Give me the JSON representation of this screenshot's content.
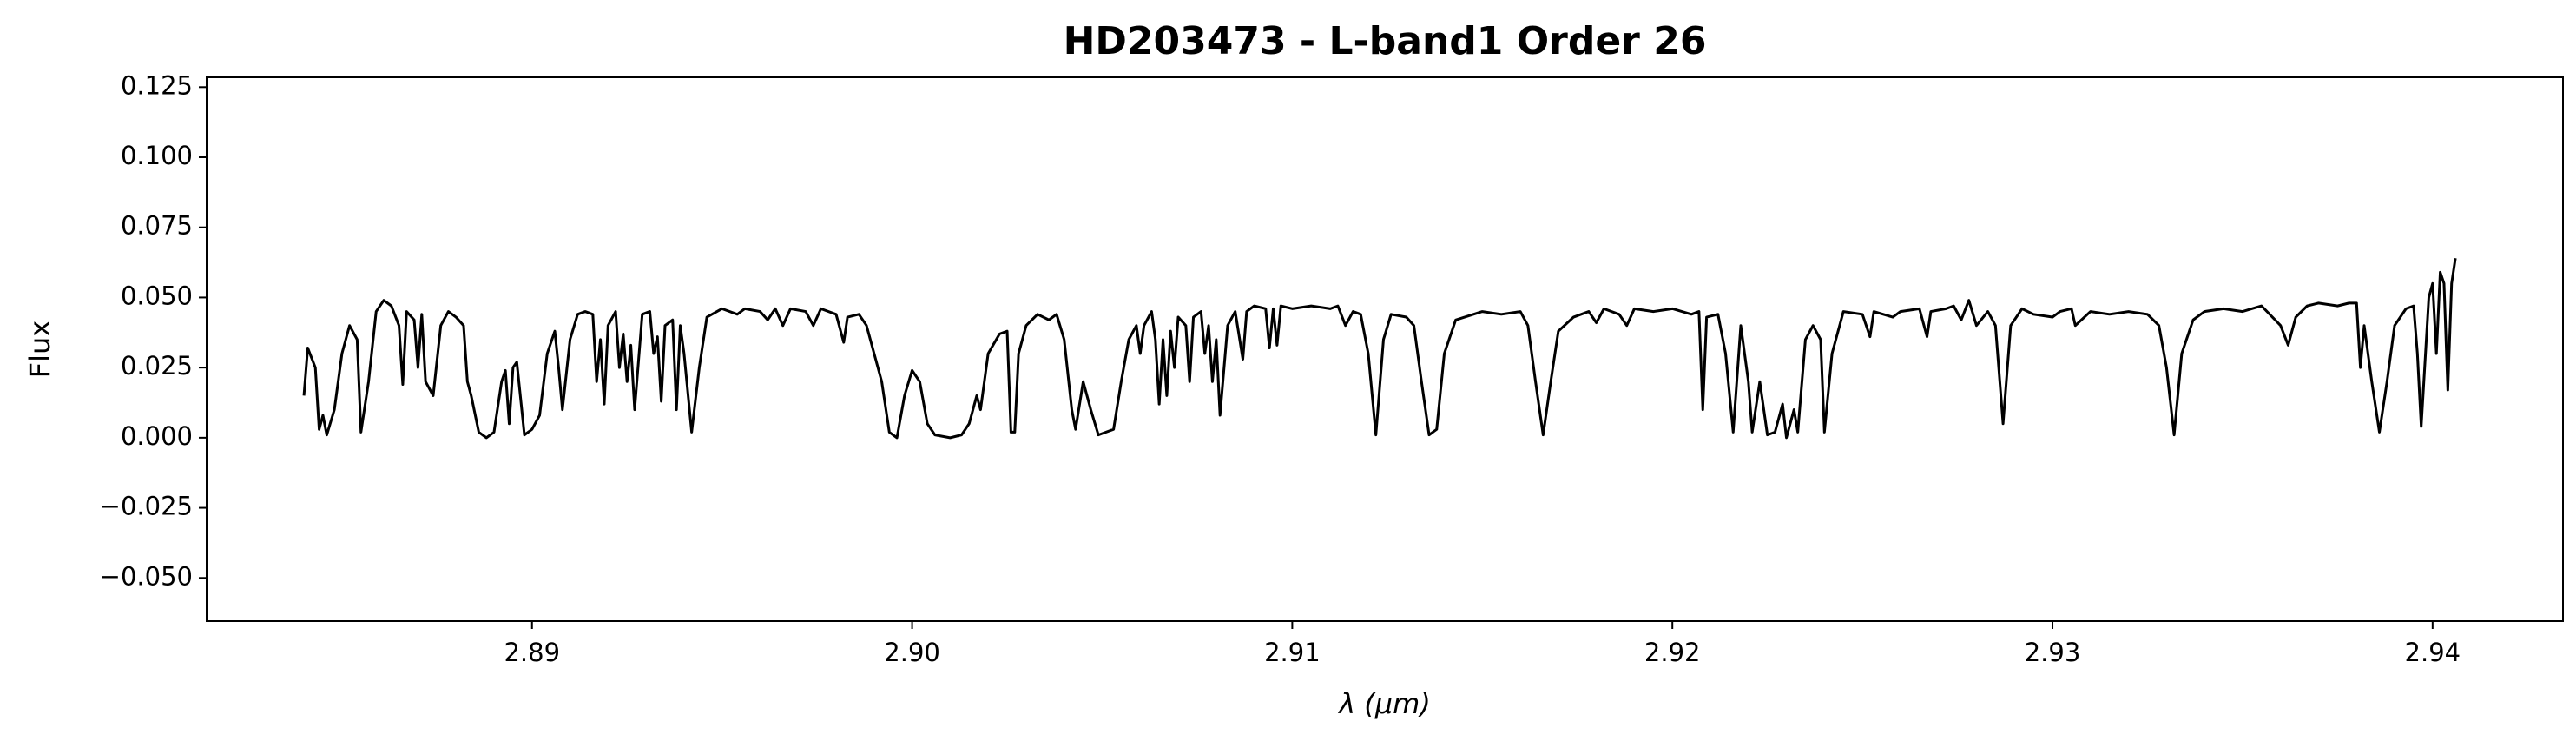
{
  "chart_data": {
    "type": "line",
    "title": "HD203473 - L-band1 Order 26",
    "xlabel": "λ (μm)",
    "ylabel": "Flux",
    "color": "#000000",
    "grid": false,
    "xlim": [
      2.88144,
      2.94343
    ],
    "ylim": [
      -0.0654,
      0.1285
    ],
    "xticks": [
      2.89,
      {
        "value": 2.9,
        "label": "2.90"
      },
      2.91,
      2.92,
      2.93,
      2.94
    ],
    "yticks": [
      {
        "value": -0.05,
        "label": "−0.050"
      },
      {
        "value": -0.025,
        "label": "−0.025"
      },
      {
        "value": 0,
        "label": "0.000"
      },
      {
        "value": 0.025,
        "label": "0.025"
      },
      {
        "value": 0.05,
        "label": "0.050"
      },
      {
        "value": 0.075,
        "label": "0.075"
      },
      {
        "value": 0.1,
        "label": "0.100"
      },
      0.125
    ],
    "x": [
      2.884,
      2.8841,
      2.8843,
      2.8844,
      2.8845,
      2.8846,
      2.8848,
      2.885,
      2.8852,
      2.8854,
      2.8855,
      2.8857,
      2.8859,
      2.8861,
      2.8863,
      2.8865,
      2.8866,
      2.8867,
      2.8869,
      2.887,
      2.8871,
      2.8872,
      2.8874,
      2.8876,
      2.8878,
      2.888,
      2.8882,
      2.8883,
      2.8884,
      2.8886,
      2.8888,
      2.889,
      2.8892,
      2.8893,
      2.8894,
      2.8895,
      2.8896,
      2.8898,
      2.89,
      2.8902,
      2.8904,
      2.8906,
      2.8907,
      2.8908,
      2.891,
      2.8912,
      2.8914,
      2.8916,
      2.8917,
      2.8918,
      2.8919,
      2.892,
      2.8922,
      2.8923,
      2.8924,
      2.8925,
      2.8926,
      2.8927,
      2.8929,
      2.8931,
      2.8932,
      2.8933,
      2.8934,
      2.8935,
      2.8937,
      2.8938,
      2.8939,
      2.894,
      2.8942,
      2.8944,
      2.8946,
      2.895,
      2.8954,
      2.8956,
      2.896,
      2.8962,
      2.8964,
      2.8966,
      2.8968,
      2.8972,
      2.8974,
      2.8976,
      2.898,
      2.8982,
      2.8983,
      2.8986,
      2.8988,
      2.899,
      2.8992,
      2.8994,
      2.8996,
      2.8998,
      2.9,
      2.9002,
      2.9004,
      2.9006,
      2.901,
      2.9013,
      2.9015,
      2.9017,
      2.9018,
      2.902,
      2.9023,
      2.9025,
      2.9026,
      2.9027,
      2.9028,
      2.903,
      2.9033,
      2.9036,
      2.9038,
      2.904,
      2.9042,
      2.9043,
      2.9045,
      2.9047,
      2.9049,
      2.9053,
      2.9055,
      2.9057,
      2.9059,
      2.906,
      2.9061,
      2.9063,
      2.9064,
      2.9065,
      2.9066,
      2.9067,
      2.9068,
      2.9069,
      2.907,
      2.9072,
      2.9073,
      2.9074,
      2.9076,
      2.9077,
      2.9078,
      2.9079,
      2.908,
      2.9081,
      2.9083,
      2.9085,
      2.9087,
      2.9088,
      2.909,
      2.9093,
      2.9094,
      2.9095,
      2.9096,
      2.9097,
      2.91,
      2.9105,
      2.911,
      2.9112,
      2.9114,
      2.9116,
      2.9118,
      2.912,
      2.9122,
      2.9124,
      2.9126,
      2.913,
      2.9132,
      2.9134,
      2.9136,
      2.9138,
      2.914,
      2.9143,
      2.915,
      2.9155,
      2.916,
      2.9162,
      2.9164,
      2.9166,
      2.9168,
      2.917,
      2.9174,
      2.9178,
      2.918,
      2.9182,
      2.9186,
      2.9188,
      2.919,
      2.9195,
      2.92,
      2.9205,
      2.9207,
      2.9208,
      2.9209,
      2.9212,
      2.9214,
      2.9216,
      2.9218,
      2.922,
      2.9221,
      2.9223,
      2.9225,
      2.9227,
      2.9229,
      2.923,
      2.9232,
      2.9233,
      2.9235,
      2.9237,
      2.9239,
      2.924,
      2.9242,
      2.9245,
      2.925,
      2.9252,
      2.9253,
      2.9258,
      2.926,
      2.9265,
      2.9267,
      2.9268,
      2.9272,
      2.9274,
      2.9276,
      2.9278,
      2.928,
      2.9283,
      2.9285,
      2.9287,
      2.9289,
      2.9292,
      2.9295,
      2.93,
      2.9302,
      2.9305,
      2.9306,
      2.931,
      2.9315,
      2.932,
      2.9325,
      2.9328,
      2.933,
      2.9332,
      2.9334,
      2.9337,
      2.934,
      2.9345,
      2.935,
      2.9355,
      2.936,
      2.9362,
      2.9364,
      2.9367,
      2.937,
      2.9375,
      2.9378,
      2.938,
      2.9381,
      2.9382,
      2.9384,
      2.9386,
      2.9388,
      2.939,
      2.9393,
      2.9395,
      2.9396,
      2.9397,
      2.9399,
      2.94,
      2.9401,
      2.9402,
      2.9403,
      2.9404,
      2.9405,
      2.9406
    ],
    "values": [
      0.015,
      0.032,
      0.025,
      0.003,
      0.008,
      0.001,
      0.01,
      0.03,
      0.04,
      0.035,
      0.002,
      0.02,
      0.045,
      0.049,
      0.047,
      0.04,
      0.019,
      0.045,
      0.042,
      0.025,
      0.044,
      0.02,
      0.015,
      0.04,
      0.045,
      0.043,
      0.04,
      0.02,
      0.015,
      0.002,
      0.0,
      0.002,
      0.02,
      0.024,
      0.005,
      0.025,
      0.027,
      0.001,
      0.003,
      0.008,
      0.03,
      0.038,
      0.025,
      0.01,
      0.035,
      0.044,
      0.045,
      0.044,
      0.02,
      0.035,
      0.012,
      0.04,
      0.045,
      0.025,
      0.037,
      0.02,
      0.033,
      0.01,
      0.044,
      0.045,
      0.03,
      0.036,
      0.013,
      0.04,
      0.042,
      0.01,
      0.04,
      0.03,
      0.002,
      0.025,
      0.043,
      0.046,
      0.044,
      0.046,
      0.045,
      0.042,
      0.046,
      0.04,
      0.046,
      0.045,
      0.04,
      0.046,
      0.044,
      0.034,
      0.043,
      0.044,
      0.04,
      0.03,
      0.02,
      0.002,
      0.0,
      0.015,
      0.024,
      0.02,
      0.005,
      0.001,
      0.0,
      0.001,
      0.005,
      0.015,
      0.01,
      0.03,
      0.037,
      0.038,
      0.002,
      0.002,
      0.03,
      0.04,
      0.044,
      0.042,
      0.044,
      0.035,
      0.01,
      0.003,
      0.02,
      0.01,
      0.001,
      0.003,
      0.02,
      0.035,
      0.04,
      0.03,
      0.04,
      0.045,
      0.035,
      0.012,
      0.035,
      0.015,
      0.038,
      0.025,
      0.043,
      0.04,
      0.02,
      0.043,
      0.045,
      0.03,
      0.04,
      0.02,
      0.035,
      0.008,
      0.04,
      0.045,
      0.028,
      0.045,
      0.047,
      0.046,
      0.032,
      0.046,
      0.033,
      0.047,
      0.046,
      0.047,
      0.046,
      0.047,
      0.04,
      0.045,
      0.044,
      0.03,
      0.001,
      0.035,
      0.044,
      0.043,
      0.04,
      0.02,
      0.001,
      0.003,
      0.03,
      0.042,
      0.045,
      0.044,
      0.045,
      0.04,
      0.02,
      0.001,
      0.02,
      0.038,
      0.043,
      0.045,
      0.041,
      0.046,
      0.044,
      0.04,
      0.046,
      0.045,
      0.046,
      0.044,
      0.045,
      0.01,
      0.043,
      0.044,
      0.03,
      0.002,
      0.04,
      0.02,
      0.002,
      0.02,
      0.001,
      0.002,
      0.012,
      0.0,
      0.01,
      0.002,
      0.035,
      0.04,
      0.035,
      0.002,
      0.03,
      0.045,
      0.044,
      0.036,
      0.045,
      0.043,
      0.045,
      0.046,
      0.036,
      0.045,
      0.046,
      0.047,
      0.042,
      0.049,
      0.04,
      0.045,
      0.04,
      0.005,
      0.04,
      0.046,
      0.044,
      0.043,
      0.045,
      0.046,
      0.04,
      0.045,
      0.044,
      0.045,
      0.044,
      0.04,
      0.025,
      0.001,
      0.03,
      0.042,
      0.045,
      0.046,
      0.045,
      0.047,
      0.04,
      0.033,
      0.043,
      0.047,
      0.048,
      0.047,
      0.048,
      0.048,
      0.025,
      0.04,
      0.02,
      0.002,
      0.02,
      0.04,
      0.046,
      0.047,
      0.03,
      0.004,
      0.05,
      0.055,
      0.03,
      0.059,
      0.055,
      0.017,
      0.055,
      0.064
    ]
  }
}
